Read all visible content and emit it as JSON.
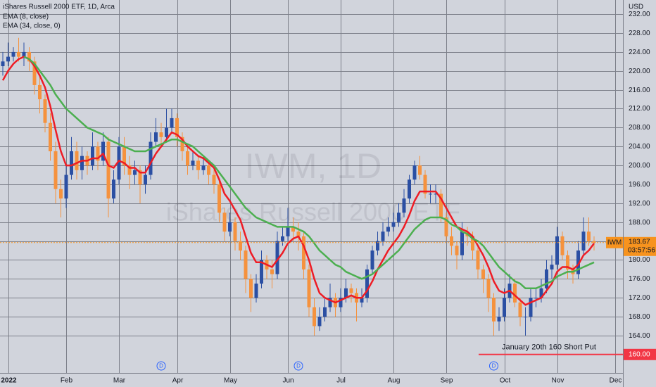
{
  "chart_data": {
    "type": "candlestick",
    "title": "iShares Russell 2000 ETF, 1D, Arca",
    "watermark": {
      "symbol": "IWM, 1D",
      "name": "iShares Russell 2000 ETF"
    },
    "currency": "USD",
    "categories": [
      null,
      "2022",
      null,
      null,
      null,
      null,
      null,
      null,
      null,
      null,
      null,
      null,
      "Feb",
      null,
      null,
      null,
      null,
      null,
      null,
      null,
      null,
      null,
      "Mar",
      null,
      null,
      null,
      null,
      null,
      null,
      null,
      null,
      null,
      null,
      "Apr",
      null,
      null,
      null,
      null,
      null,
      null,
      null,
      null,
      null,
      "May",
      null,
      null,
      null,
      null,
      null,
      null,
      null,
      null,
      null,
      null,
      "Jun",
      null,
      null,
      null,
      null,
      null,
      null,
      null,
      null,
      null,
      "Jul",
      null,
      null,
      null,
      null,
      null,
      null,
      null,
      null,
      null,
      "Aug",
      null,
      null,
      null,
      null,
      null,
      null,
      null,
      null,
      null,
      "Sep",
      null,
      null,
      null,
      null,
      null,
      null,
      null,
      null,
      null,
      null,
      "Oct",
      null,
      null,
      null,
      null,
      null,
      null,
      null,
      null,
      null,
      "Nov",
      null,
      null,
      null,
      null,
      null,
      null,
      null,
      null,
      null,
      null,
      "Dec"
    ],
    "open": [
      221,
      222,
      223,
      224,
      223,
      224,
      222,
      217,
      214,
      209,
      203,
      195,
      193,
      198,
      203,
      199,
      202,
      200,
      204,
      201,
      205,
      193,
      197,
      204,
      200,
      198,
      199,
      196,
      198,
      205,
      207,
      206,
      208,
      210,
      206,
      203,
      200,
      201,
      199,
      200,
      198,
      196,
      190,
      186,
      188,
      184,
      182,
      176,
      172,
      175,
      180,
      178,
      177,
      184,
      185,
      187,
      186,
      185,
      178,
      170,
      166,
      168,
      170,
      172,
      170,
      172,
      174,
      173,
      171,
      172,
      178,
      182,
      184,
      186,
      187,
      188,
      190,
      193,
      197,
      200,
      198,
      194,
      194,
      194,
      189,
      185,
      183,
      181,
      186,
      185,
      182,
      178,
      176,
      172,
      167,
      168,
      172,
      175,
      171,
      168,
      168,
      172,
      172,
      174,
      178,
      179,
      185,
      181,
      178,
      177,
      182,
      186,
      184,
      null,
      null,
      null,
      null
    ],
    "high": [
      224,
      226,
      225,
      227,
      226,
      225,
      223,
      219,
      215,
      211,
      205,
      197,
      200,
      206,
      205,
      204,
      203,
      207,
      205,
      207,
      206,
      199,
      206,
      206,
      202,
      201,
      200,
      200,
      207,
      210,
      209,
      212,
      212,
      211,
      207,
      204,
      203,
      202,
      202,
      201,
      199,
      197,
      191,
      190,
      189,
      186,
      183,
      177,
      177,
      182,
      181,
      180,
      186,
      187,
      191,
      189,
      188,
      186,
      179,
      172,
      170,
      172,
      175,
      173,
      174,
      176,
      175,
      174,
      174,
      179,
      183,
      186,
      188,
      189,
      190,
      192,
      195,
      198,
      201,
      202,
      199,
      196,
      196,
      195,
      190,
      187,
      184,
      188,
      187,
      186,
      183,
      179,
      177,
      173,
      170,
      174,
      177,
      176,
      172,
      170,
      174,
      174,
      176,
      180,
      181,
      187,
      186,
      182,
      179,
      184,
      189,
      189,
      185,
      null,
      null,
      null,
      null
    ],
    "low": [
      219,
      221,
      222,
      222,
      221,
      220,
      215,
      211,
      207,
      201,
      192,
      189,
      191,
      197,
      197,
      197,
      198,
      199,
      199,
      200,
      189,
      192,
      196,
      198,
      195,
      196,
      192,
      194,
      197,
      204,
      204,
      205,
      207,
      204,
      201,
      198,
      199,
      197,
      198,
      196,
      194,
      188,
      184,
      185,
      182,
      180,
      173,
      169,
      171,
      174,
      176,
      174,
      176,
      183,
      184,
      184,
      182,
      176,
      168,
      164,
      165,
      167,
      169,
      168,
      169,
      171,
      171,
      167,
      170,
      171,
      177,
      181,
      183,
      185,
      186,
      187,
      189,
      192,
      196,
      197,
      193,
      192,
      192,
      188,
      184,
      181,
      178,
      180,
      183,
      180,
      176,
      173,
      169,
      164,
      165,
      167,
      171,
      170,
      166,
      164,
      167,
      170,
      171,
      173,
      176,
      178,
      180,
      176,
      175,
      176,
      181,
      183,
      182,
      null,
      null,
      null,
      null
    ],
    "close": [
      222,
      223,
      224,
      223,
      224,
      222,
      217,
      214,
      209,
      203,
      195,
      193,
      198,
      203,
      199,
      202,
      200,
      204,
      201,
      205,
      193,
      197,
      204,
      200,
      198,
      199,
      196,
      198,
      205,
      207,
      206,
      208,
      210,
      206,
      203,
      200,
      201,
      199,
      200,
      198,
      196,
      190,
      186,
      188,
      184,
      182,
      176,
      172,
      175,
      180,
      178,
      177,
      184,
      185,
      187,
      186,
      185,
      178,
      170,
      166,
      168,
      170,
      172,
      170,
      172,
      174,
      173,
      171,
      172,
      178,
      182,
      184,
      186,
      187,
      188,
      190,
      193,
      197,
      200,
      198,
      194,
      194,
      194,
      189,
      185,
      183,
      181,
      186,
      185,
      182,
      178,
      176,
      172,
      167,
      168,
      172,
      175,
      171,
      168,
      168,
      172,
      172,
      174,
      178,
      179,
      185,
      181,
      178,
      177,
      182,
      186,
      184,
      183.67,
      null,
      null,
      null,
      null
    ],
    "up_color": "#2b4fa3",
    "down_color": "#f5923e",
    "series": [
      {
        "name": "EMA (8, close)",
        "color": "#ee1c25",
        "values": [
          218,
          220,
          221.5,
          222.5,
          223,
          222.5,
          221,
          219,
          216.5,
          212.5,
          207.5,
          203,
          200,
          200,
          200.5,
          201,
          201,
          201.5,
          201.5,
          202.5,
          200,
          199.5,
          201,
          200.5,
          199.5,
          199.5,
          198.5,
          198.5,
          200.5,
          202.5,
          204,
          205.5,
          207,
          206.5,
          205.5,
          204,
          203,
          202,
          201.5,
          200.5,
          199.5,
          197,
          194,
          192.5,
          190.5,
          188.5,
          185,
          181.5,
          179.5,
          179.5,
          179,
          178.5,
          180,
          181.5,
          183.5,
          184.5,
          185,
          183,
          180,
          176,
          173,
          172,
          171.5,
          171,
          171.5,
          172,
          172.5,
          172,
          172,
          173.5,
          175.5,
          178,
          180,
          182,
          183.5,
          185,
          187,
          189.5,
          192.5,
          194.5,
          194.5,
          194.5,
          194.5,
          193,
          191,
          189,
          187,
          186.5,
          186,
          185,
          183,
          181,
          178.5,
          175.5,
          173.5,
          173,
          173.5,
          172.5,
          171.5,
          170.5,
          171,
          171.5,
          172,
          173.5,
          175,
          177.5,
          178.5,
          178.5,
          178,
          179,
          181,
          182,
          183.5,
          null,
          null,
          null,
          null
        ]
      },
      {
        "name": "EMA (34, close, 0)",
        "color": "#4caf50",
        "values": [
          null,
          null,
          null,
          null,
          223,
          222.5,
          221.5,
          220,
          218.5,
          217,
          215,
          213.5,
          212,
          211,
          210,
          209,
          208,
          207.5,
          207,
          206.5,
          205.5,
          205,
          204.5,
          204,
          203.5,
          203,
          203,
          203,
          203.5,
          204,
          204.5,
          205,
          205.5,
          205.5,
          205,
          204.5,
          204,
          203,
          202,
          201,
          200,
          198.5,
          197,
          195.5,
          194,
          192.5,
          191,
          190,
          189,
          188.5,
          188,
          187.5,
          187,
          187,
          187,
          187,
          186.5,
          186,
          185,
          183.5,
          182,
          181,
          180,
          179,
          178.5,
          177.5,
          177,
          176.5,
          176,
          176.5,
          177,
          178,
          179,
          180,
          181,
          182,
          183.5,
          185,
          186.5,
          187.5,
          188.5,
          189,
          189,
          189,
          188.5,
          187.5,
          187,
          186,
          185.5,
          184.5,
          184,
          183,
          181.5,
          180,
          178.5,
          177.5,
          176.5,
          175.5,
          175,
          174,
          174,
          174,
          174.5,
          175,
          175.5,
          176.5,
          177,
          177.5,
          177.5,
          178,
          178.5,
          179,
          179.5,
          null,
          null,
          null,
          null
        ]
      }
    ],
    "ylim": [
      156.1,
      235
    ],
    "yticks": [
      {
        "value": 164,
        "label": "164.00"
      },
      {
        "value": 168,
        "label": "168.00"
      },
      {
        "value": 172,
        "label": "172.00"
      },
      {
        "value": 176,
        "label": "176.00"
      },
      {
        "value": 180,
        "label": "180.00"
      },
      {
        "value": 184,
        "label": "184.00"
      },
      {
        "value": 188,
        "label": "188.00"
      },
      {
        "value": 192,
        "label": "192.00"
      },
      {
        "value": 196,
        "label": "196.00"
      },
      {
        "value": 200,
        "label": "200.00"
      },
      {
        "value": 204,
        "label": "204.00"
      },
      {
        "value": 208,
        "label": "208.00"
      },
      {
        "value": 212,
        "label": "212.00"
      },
      {
        "value": 216,
        "label": "216.00"
      },
      {
        "value": 220,
        "label": "220.00"
      },
      {
        "value": 224,
        "label": "224.00"
      },
      {
        "value": 228,
        "label": "228.00"
      },
      {
        "value": 232,
        "label": "232.00"
      }
    ],
    "grid": true,
    "last_price": {
      "symbol": "IWM",
      "value": 183.67,
      "countdown": "03:57:56",
      "color": "#f7931e"
    },
    "hline": {
      "value": 160,
      "label": "160.00",
      "color": "#f23645",
      "annotation": "January 20th 160 Short Put"
    },
    "dividend_markers": [
      null,
      null,
      null,
      null,
      null,
      null,
      null,
      null,
      null,
      null,
      null,
      null,
      null,
      null,
      null,
      null,
      null,
      null,
      null,
      null,
      null,
      null,
      null,
      null,
      null,
      null,
      null,
      null,
      null,
      null,
      "D",
      null,
      null,
      null,
      null,
      null,
      null,
      null,
      null,
      null,
      null,
      null,
      null,
      null,
      null,
      null,
      null,
      null,
      null,
      null,
      null,
      null,
      null,
      null,
      null,
      null,
      "D",
      null,
      null,
      null,
      null,
      null,
      null,
      null,
      null,
      null,
      null,
      null,
      null,
      null,
      null,
      null,
      null,
      null,
      null,
      null,
      null,
      null,
      null,
      null,
      null,
      null,
      null,
      null,
      null,
      null,
      null,
      null,
      null,
      null,
      null,
      null,
      null,
      "D",
      null,
      null,
      null,
      null,
      null,
      null,
      null,
      null,
      null,
      null,
      null,
      null,
      null,
      null,
      null,
      null,
      null,
      null,
      null,
      null,
      null,
      null,
      null
    ]
  }
}
